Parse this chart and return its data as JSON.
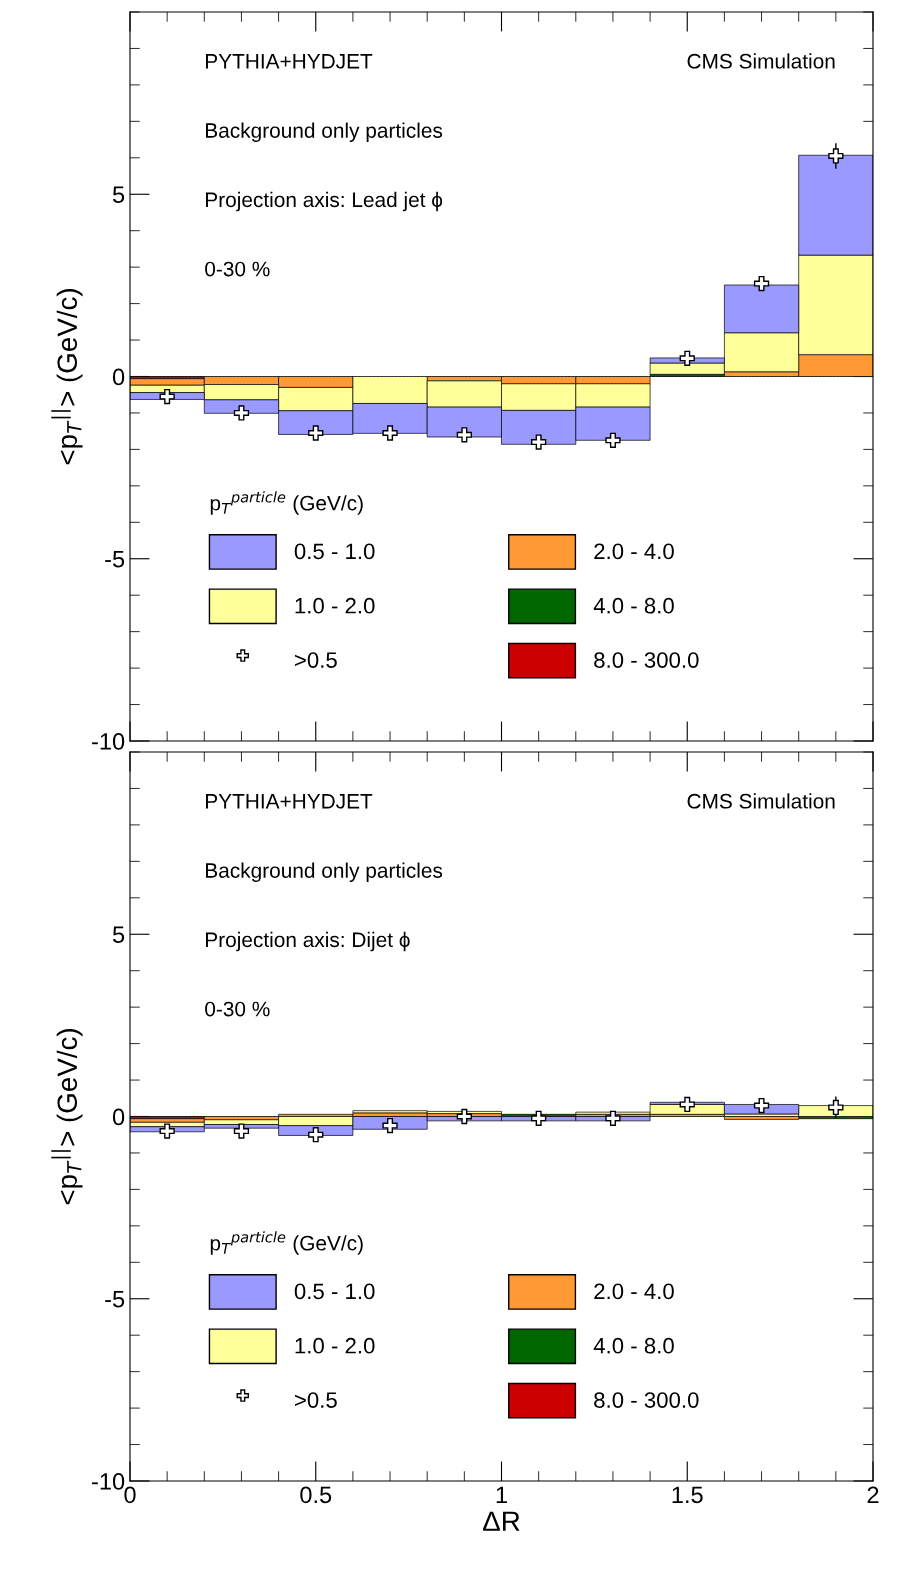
{
  "chart_data": [
    {
      "type": "bar",
      "stacked": true,
      "x": [
        0.1,
        0.3,
        0.5,
        0.7,
        0.9,
        1.1,
        1.3,
        1.5,
        1.7,
        1.9
      ],
      "xlim": [
        0,
        2
      ],
      "xticks": [
        0,
        0.5,
        1,
        1.5,
        2
      ],
      "ylim": [
        -10,
        10
      ],
      "yticks": [
        -10,
        -5,
        0,
        5
      ],
      "ylabel": "<p$_{T}$$^{||}$> (GeV/c)",
      "tick_labels": "y",
      "grid": false,
      "legend": "bottom",
      "ref_lines": [
        {
          "axis": "y",
          "value": 0,
          "color": "#000000",
          "line_style": "dashed"
        }
      ],
      "legend_title": "p$_{T}$$^{particle}$ (GeV/c)",
      "annotations": [
        "PYTHIA+HYDJET",
        "CMS Simulation",
        "Background only particles",
        "Projection axis: Lead jet ϕ",
        "0-30 %"
      ],
      "series": [
        {
          "name": "8.0 - 300.0",
          "color": "#cc0000",
          "values": [
            -0.06,
            null,
            null,
            null,
            null,
            null,
            null,
            null,
            null,
            null
          ]
        },
        {
          "name": "4.0 - 8.0",
          "color": "#006600",
          "values": [
            null,
            null,
            null,
            null,
            null,
            null,
            null,
            0.06,
            null,
            null
          ]
        },
        {
          "name": "2.0 - 4.0",
          "color": "#ff9933",
          "values": [
            -0.18,
            -0.22,
            -0.3,
            null,
            -0.12,
            -0.2,
            -0.2,
            null,
            0.13,
            0.6
          ]
        },
        {
          "name": "1.0 - 2.0",
          "color": "#ffff99",
          "values": [
            -0.2,
            -0.42,
            -0.64,
            -0.74,
            -0.72,
            -0.73,
            -0.64,
            0.31,
            1.07,
            2.73
          ]
        },
        {
          "name": "0.5 - 1.0",
          "color": "#9999ff",
          "values": [
            -0.19,
            -0.37,
            -0.65,
            -0.82,
            -0.82,
            -0.93,
            -0.91,
            0.14,
            1.31,
            2.74
          ]
        },
        {
          "name": ">0.5",
          "type": "scatter",
          "marker": "cross",
          "color": "#ffffff",
          "values": [
            -0.55,
            -1.0,
            -1.55,
            -1.55,
            -1.6,
            -1.8,
            -1.75,
            0.5,
            2.55,
            6.05
          ],
          "errors": [
            null,
            null,
            null,
            null,
            null,
            null,
            null,
            null,
            null,
            0.35
          ]
        }
      ]
    },
    {
      "type": "bar",
      "stacked": true,
      "x": [
        0.1,
        0.3,
        0.5,
        0.7,
        0.9,
        1.1,
        1.3,
        1.5,
        1.7,
        1.9
      ],
      "xlim": [
        0,
        2
      ],
      "xticks": [
        0,
        0.5,
        1,
        1.5,
        2
      ],
      "ylim": [
        -10,
        10
      ],
      "yticks": [
        -10,
        -5,
        0,
        5
      ],
      "xlabel": "ΔR",
      "ylabel": "<p$_{T}$$^{||}$> (GeV/c)",
      "grid": false,
      "legend": "bottom",
      "ref_lines": [
        {
          "axis": "y",
          "value": 0,
          "color": "#000000",
          "line_style": "dashed"
        }
      ],
      "legend_title": "p$_{T}$$^{particle}$ (GeV/c)",
      "annotations": [
        "PYTHIA+HYDJET",
        "CMS Simulation",
        "Background only particles",
        "Projection axis: Dijet ϕ",
        "0-30 %"
      ],
      "series": [
        {
          "name": "8.0 - 300.0",
          "color": "#cc0000",
          "values": [
            -0.06,
            null,
            null,
            null,
            null,
            null,
            null,
            null,
            null,
            null
          ]
        },
        {
          "name": "4.0 - 8.0",
          "color": "#006600",
          "values": [
            null,
            null,
            null,
            null,
            null,
            0.06,
            null,
            null,
            null,
            -0.06
          ]
        },
        {
          "name": "2.0 - 4.0",
          "color": "#ff9933",
          "values": [
            -0.1,
            -0.09,
            0.06,
            0.1,
            0.08,
            null,
            0.06,
            0.06,
            -0.08,
            null
          ]
        },
        {
          "name": "1.0 - 2.0",
          "color": "#ffff99",
          "values": [
            -0.12,
            -0.13,
            -0.25,
            0.06,
            0.06,
            null,
            0.06,
            0.27,
            0.07,
            0.3
          ]
        },
        {
          "name": "0.5 - 1.0",
          "color": "#9999ff",
          "values": [
            -0.14,
            -0.1,
            -0.27,
            -0.35,
            -0.12,
            -0.12,
            -0.12,
            0.06,
            0.26,
            null
          ]
        },
        {
          "name": ">0.5",
          "type": "scatter",
          "marker": "cross",
          "color": "#ffffff",
          "values": [
            -0.4,
            -0.4,
            -0.5,
            -0.25,
            0.0,
            -0.05,
            -0.05,
            0.33,
            0.3,
            0.25
          ],
          "errors": [
            null,
            null,
            null,
            0.2,
            0.2,
            0.2,
            0.2,
            0.2,
            null,
            0.3
          ]
        }
      ]
    }
  ]
}
